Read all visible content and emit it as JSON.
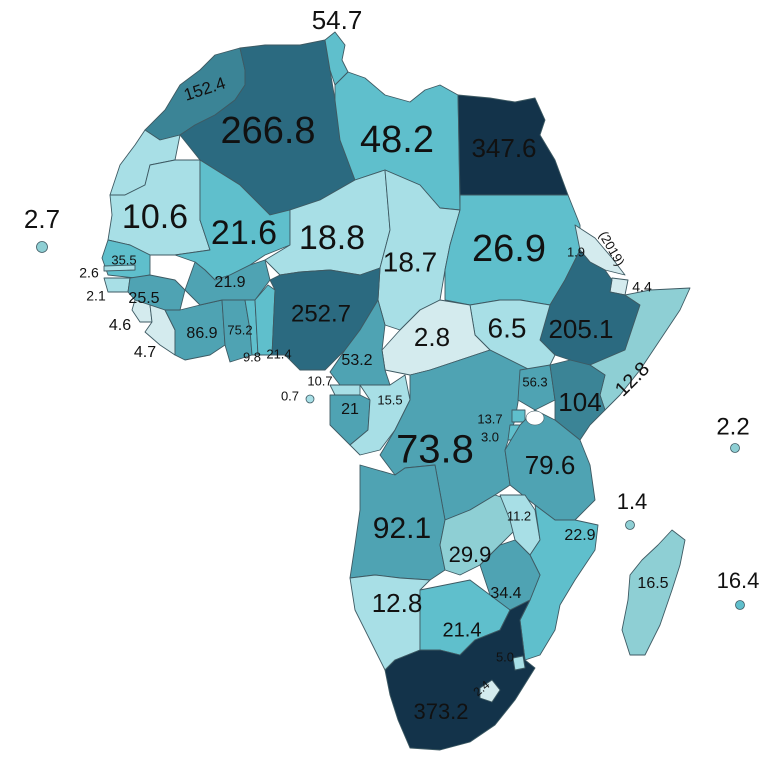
{
  "palette": {
    "lightest": "#d4ebee",
    "light": "#a8dfe6",
    "pale": "#8ecfd4",
    "medium": "#5fbfcc",
    "mid_dark": "#4fa3b3",
    "dark": "#3b8496",
    "darker": "#2b6a80",
    "darkest": "#13334a"
  },
  "map": {
    "labels": {
      "tunisia": "54.7",
      "morocco": "152.4",
      "algeria": "266.8",
      "libya": "48.2",
      "egypt": "347.6",
      "mauritania": "10.6",
      "mali": "21.6",
      "niger": "18.8",
      "chad": "18.7",
      "sudan": "26.9",
      "eritrea": "1.9",
      "eritrea_note": "(2019)",
      "djibouti": "4.4",
      "cape_verde": "2.7",
      "senegal": "35.5",
      "gambia": "2.6",
      "guinea_bissau": "2.1",
      "guinea": "25.5",
      "burkina_faso": "21.9",
      "sierra_leone": "4.6",
      "liberia": "4.7",
      "cote_divoire": "86.9",
      "ghana": "75.2",
      "togo": "9.8",
      "benin": "21.4",
      "nigeria": "252.7",
      "car": "2.8",
      "south_sudan": "6.5",
      "ethiopia": "205.1",
      "somalia": "12.8",
      "cameroon": "53.2",
      "equatorial_guinea": "10.7",
      "sao_tome": "0.7",
      "gabon": "21",
      "congo": "15.5",
      "drc": "73.8",
      "rwanda": "13.7",
      "burundi": "3.0",
      "uganda": "56.3",
      "kenya": "104",
      "seychelles": "2.2",
      "tanzania": "79.6",
      "comoros": "1.4",
      "angola": "92.1",
      "malawi": "11.2",
      "zambia": "29.9",
      "mozambique": "22.9",
      "madagascar": "16.5",
      "mauritius": "16.4",
      "namibia": "12.8",
      "zimbabwe": "34.4",
      "botswana": "21.4",
      "eswatini": "5.0",
      "lesotho": "2.4",
      "south_africa": "373.2"
    }
  }
}
